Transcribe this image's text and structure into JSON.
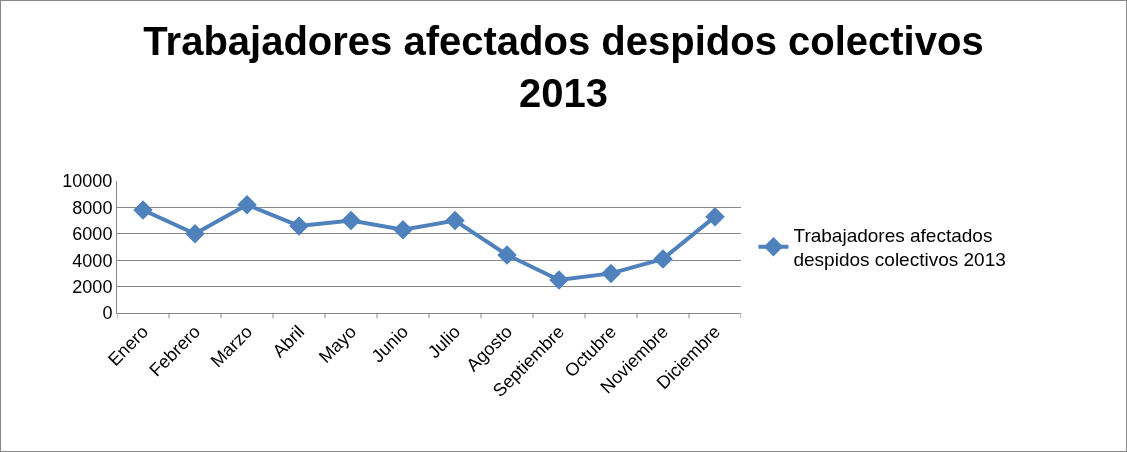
{
  "chart_data": {
    "type": "line",
    "title": "Trabajadores afectados despidos colectivos\n2013",
    "categories": [
      "Enero",
      "Febrero",
      "Marzo",
      "Abril",
      "Mayo",
      "Junio",
      "Julio",
      "Agosto",
      "Septiembre",
      "Octubre",
      "Noviembre",
      "Diciembre"
    ],
    "series": [
      {
        "name": "Trabajadores afectados\ndespidos colectivos 2013",
        "color": "#4f81bd",
        "values": [
          7800,
          6000,
          8200,
          6600,
          7000,
          6300,
          7000,
          4400,
          2500,
          3000,
          4100,
          7300
        ]
      }
    ],
    "ylim": [
      0,
      10000
    ],
    "yticks": [
      0,
      2000,
      4000,
      6000,
      8000,
      10000
    ],
    "grid": "y",
    "legend": "right",
    "marker": "diamond",
    "line_style": "solid"
  }
}
